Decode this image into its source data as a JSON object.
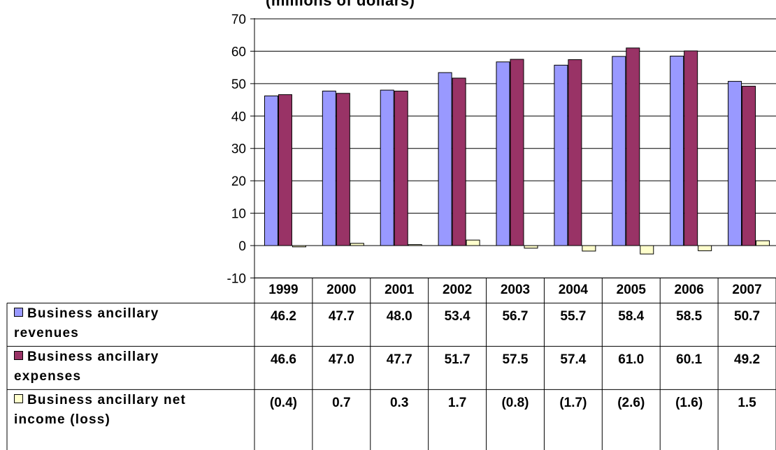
{
  "chart_data": {
    "type": "bar",
    "title": "(millions of dollars)",
    "categories": [
      "1999",
      "2000",
      "2001",
      "2002",
      "2003",
      "2004",
      "2005",
      "2006",
      "2007"
    ],
    "ylim": [
      -10,
      70
    ],
    "yticks": [
      "70",
      "60",
      "50",
      "40",
      "30",
      "20",
      "10",
      "0",
      "-10"
    ],
    "ytick_values": [
      70,
      60,
      50,
      40,
      30,
      20,
      10,
      0,
      -10
    ],
    "grid": true,
    "legend": "data-table",
    "series": [
      {
        "name": "Business ancillary revenues",
        "name_line1": "Business ancillary",
        "name_line2": "revenues",
        "color": "#9999ff",
        "values": [
          46.2,
          47.7,
          48.0,
          53.4,
          56.7,
          55.7,
          58.4,
          58.5,
          50.7
        ],
        "labels": [
          "46.2",
          "47.7",
          "48.0",
          "53.4",
          "56.7",
          "55.7",
          "58.4",
          "58.5",
          "50.7"
        ]
      },
      {
        "name": "Business ancillary expenses",
        "name_line1": "Business ancillary",
        "name_line2": "expenses",
        "color": "#993366",
        "values": [
          46.6,
          47.0,
          47.7,
          51.7,
          57.5,
          57.4,
          61.0,
          60.1,
          49.2
        ],
        "labels": [
          "46.6",
          "47.0",
          "47.7",
          "51.7",
          "57.5",
          "57.4",
          "61.0",
          "60.1",
          "49.2"
        ]
      },
      {
        "name": "Business ancillary net income (loss)",
        "name_line1": "Business ancillary net",
        "name_line2": "income (loss)",
        "color": "#ffffcc",
        "values": [
          -0.4,
          0.7,
          0.3,
          1.7,
          -0.8,
          -1.7,
          -2.6,
          -1.6,
          1.5
        ],
        "labels": [
          "(0.4)",
          "0.7",
          "0.3",
          "1.7",
          "(0.8)",
          "(1.7)",
          "(2.6)",
          "(1.6)",
          "1.5"
        ]
      }
    ]
  }
}
